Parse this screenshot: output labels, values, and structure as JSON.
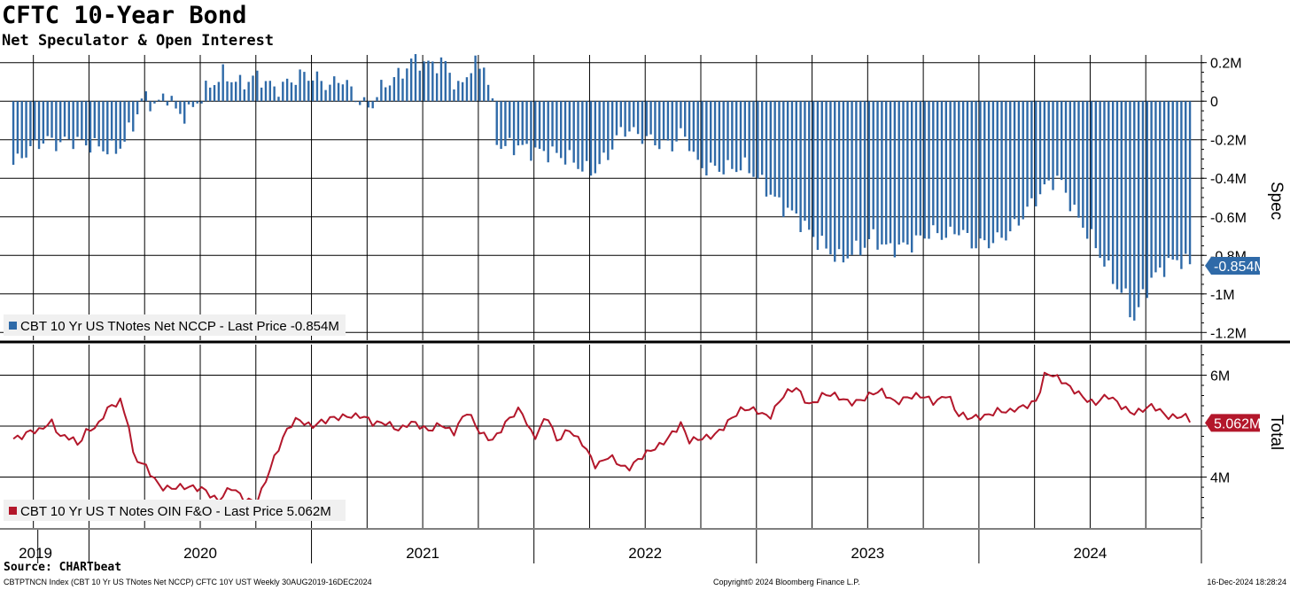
{
  "header": {
    "title": "CFTC 10-Year Bond",
    "subtitle": "Net Speculator & Open Interest"
  },
  "footer": {
    "source": "Source: CHARTbeat",
    "ticker_desc": "CBTPTNCN Index (CBT 10 Yr US TNotes Net NCCP) CFTC 10Y UST  Weekly 30AUG2019-16DEC2024",
    "copyright": "Copyright© 2024 Bloomberg Finance L.P.",
    "timestamp": "16-Dec-2024 18:28:24"
  },
  "colors": {
    "spec": "#2f6aa8",
    "total": "#b3172b",
    "grid": "#000000",
    "legend_bg": "#f0f0f0"
  },
  "chart_data": [
    {
      "type": "bar",
      "panel": "top",
      "series_name": "CBT 10 Yr US TNotes Net NCCP",
      "legend_label": "CBT 10 Yr US TNotes Net NCCP - Last Price -0.854M",
      "axis_title": "Spec",
      "y_unit": "millions",
      "ylim": [
        -1.24,
        0.24
      ],
      "y_ticks": [
        0.2,
        0,
        -0.2,
        -0.4,
        -0.6,
        -0.8,
        -1.0,
        -1.2
      ],
      "y_tick_labels": [
        "0.2M",
        "0",
        "-0.2M",
        "-0.4M",
        "-0.6M",
        "-0.8M",
        "-1M",
        "-1.2M"
      ],
      "last_value": -0.854,
      "last_label": "-0.854M",
      "anchors": [
        [
          2019.66,
          -0.33
        ],
        [
          2019.72,
          -0.26
        ],
        [
          2019.8,
          -0.2
        ],
        [
          2019.86,
          -0.22
        ],
        [
          2019.92,
          -0.2
        ],
        [
          2019.98,
          -0.22
        ],
        [
          2020.05,
          -0.24
        ],
        [
          2020.12,
          -0.26
        ],
        [
          2020.16,
          -0.2
        ],
        [
          2020.2,
          -0.12
        ],
        [
          2020.24,
          0.02
        ],
        [
          2020.3,
          -0.02
        ],
        [
          2020.36,
          0.04
        ],
        [
          2020.4,
          -0.08
        ],
        [
          2020.46,
          -0.05
        ],
        [
          2020.52,
          0.05
        ],
        [
          2020.6,
          0.14
        ],
        [
          2020.68,
          0.09
        ],
        [
          2020.76,
          0.13
        ],
        [
          2020.84,
          0.06
        ],
        [
          2020.9,
          0.1
        ],
        [
          2020.96,
          0.14
        ],
        [
          2021.02,
          0.12
        ],
        [
          2021.08,
          0.08
        ],
        [
          2021.14,
          0.12
        ],
        [
          2021.2,
          0.02
        ],
        [
          2021.26,
          -0.04
        ],
        [
          2021.32,
          0.08
        ],
        [
          2021.4,
          0.14
        ],
        [
          2021.46,
          0.22
        ],
        [
          2021.52,
          0.19
        ],
        [
          2021.6,
          0.2
        ],
        [
          2021.66,
          0.06
        ],
        [
          2021.72,
          0.18
        ],
        [
          2021.78,
          0.19
        ],
        [
          2021.81,
          0.0
        ],
        [
          2021.82,
          -0.1
        ],
        [
          2021.84,
          -0.24
        ],
        [
          2021.92,
          -0.23
        ],
        [
          2022.0,
          -0.26
        ],
        [
          2022.08,
          -0.27
        ],
        [
          2022.16,
          -0.3
        ],
        [
          2022.22,
          -0.35
        ],
        [
          2022.26,
          -0.37
        ],
        [
          2022.32,
          -0.3
        ],
        [
          2022.4,
          -0.14
        ],
        [
          2022.46,
          -0.17
        ],
        [
          2022.56,
          -0.22
        ],
        [
          2022.62,
          -0.23
        ],
        [
          2022.66,
          -0.17
        ],
        [
          2022.7,
          -0.22
        ],
        [
          2022.74,
          -0.34
        ],
        [
          2022.8,
          -0.35
        ],
        [
          2022.88,
          -0.35
        ],
        [
          2022.96,
          -0.34
        ],
        [
          2023.02,
          -0.42
        ],
        [
          2023.1,
          -0.53
        ],
        [
          2023.18,
          -0.6
        ],
        [
          2023.26,
          -0.71
        ],
        [
          2023.34,
          -0.79
        ],
        [
          2023.38,
          -0.83
        ],
        [
          2023.42,
          -0.79
        ],
        [
          2023.48,
          -0.76
        ],
        [
          2023.52,
          -0.7
        ],
        [
          2023.58,
          -0.76
        ],
        [
          2023.64,
          -0.76
        ],
        [
          2023.7,
          -0.74
        ],
        [
          2023.78,
          -0.68
        ],
        [
          2023.86,
          -0.7
        ],
        [
          2023.92,
          -0.66
        ],
        [
          2023.96,
          -0.74
        ],
        [
          2024.02,
          -0.74
        ],
        [
          2024.08,
          -0.72
        ],
        [
          2024.14,
          -0.68
        ],
        [
          2024.2,
          -0.59
        ],
        [
          2024.26,
          -0.5
        ],
        [
          2024.32,
          -0.42
        ],
        [
          2024.36,
          -0.4
        ],
        [
          2024.38,
          -0.45
        ],
        [
          2024.44,
          -0.6
        ],
        [
          2024.5,
          -0.7
        ],
        [
          2024.56,
          -0.83
        ],
        [
          2024.62,
          -0.96
        ],
        [
          2024.66,
          -1.02
        ],
        [
          2024.7,
          -1.14
        ],
        [
          2024.74,
          -1.0
        ],
        [
          2024.78,
          -0.92
        ],
        [
          2024.84,
          -0.85
        ],
        [
          2024.9,
          -0.82
        ],
        [
          2024.96,
          -0.854
        ]
      ]
    },
    {
      "type": "line",
      "panel": "bottom",
      "series_name": "CBT 10 Yr US T Notes OIN F&O",
      "legend_label": "CBT 10 Yr US T Notes OIN F&O - Last Price 5.062M",
      "axis_title": "Total",
      "y_unit": "millions",
      "ylim": [
        3.0,
        6.6
      ],
      "y_ticks": [
        6,
        5,
        4
      ],
      "y_tick_labels": [
        "6M",
        "",
        "4M"
      ],
      "last_value": 5.062,
      "last_label": "5.062M",
      "anchors": [
        [
          2019.66,
          4.75
        ],
        [
          2019.7,
          4.85
        ],
        [
          2019.74,
          4.95
        ],
        [
          2019.78,
          4.88
        ],
        [
          2019.83,
          5.05
        ],
        [
          2019.87,
          4.8
        ],
        [
          2019.92,
          4.85
        ],
        [
          2019.95,
          4.65
        ],
        [
          2019.98,
          4.85
        ],
        [
          2020.04,
          4.95
        ],
        [
          2020.08,
          5.35
        ],
        [
          2020.14,
          5.55
        ],
        [
          2020.18,
          5.0
        ],
        [
          2020.2,
          4.35
        ],
        [
          2020.26,
          4.15
        ],
        [
          2020.32,
          3.85
        ],
        [
          2020.38,
          3.8
        ],
        [
          2020.44,
          3.75
        ],
        [
          2020.52,
          3.8
        ],
        [
          2020.58,
          3.55
        ],
        [
          2020.64,
          3.75
        ],
        [
          2020.7,
          3.55
        ],
        [
          2020.76,
          3.6
        ],
        [
          2020.8,
          4.0
        ],
        [
          2020.86,
          4.6
        ],
        [
          2020.9,
          5.0
        ],
        [
          2020.94,
          5.2
        ],
        [
          2021.0,
          5.0
        ],
        [
          2021.06,
          5.05
        ],
        [
          2021.1,
          5.15
        ],
        [
          2021.16,
          5.25
        ],
        [
          2021.22,
          5.2
        ],
        [
          2021.28,
          5.0
        ],
        [
          2021.34,
          5.1
        ],
        [
          2021.4,
          4.95
        ],
        [
          2021.44,
          5.05
        ],
        [
          2021.52,
          4.9
        ],
        [
          2021.58,
          5.1
        ],
        [
          2021.64,
          4.85
        ],
        [
          2021.7,
          5.25
        ],
        [
          2021.76,
          4.9
        ],
        [
          2021.82,
          4.75
        ],
        [
          2021.88,
          5.05
        ],
        [
          2021.94,
          5.35
        ],
        [
          2022.0,
          4.8
        ],
        [
          2022.06,
          5.2
        ],
        [
          2022.1,
          4.65
        ],
        [
          2022.16,
          4.95
        ],
        [
          2022.22,
          4.7
        ],
        [
          2022.28,
          4.15
        ],
        [
          2022.34,
          4.4
        ],
        [
          2022.42,
          4.2
        ],
        [
          2022.5,
          4.4
        ],
        [
          2022.56,
          4.6
        ],
        [
          2022.62,
          4.9
        ],
        [
          2022.66,
          5.05
        ],
        [
          2022.7,
          4.65
        ],
        [
          2022.76,
          4.75
        ],
        [
          2022.82,
          4.9
        ],
        [
          2022.88,
          5.1
        ],
        [
          2022.94,
          5.3
        ],
        [
          2023.0,
          5.35
        ],
        [
          2023.06,
          5.2
        ],
        [
          2023.12,
          5.55
        ],
        [
          2023.18,
          5.75
        ],
        [
          2023.24,
          5.45
        ],
        [
          2023.3,
          5.6
        ],
        [
          2023.36,
          5.55
        ],
        [
          2023.42,
          5.5
        ],
        [
          2023.48,
          5.55
        ],
        [
          2023.56,
          5.65
        ],
        [
          2023.62,
          5.5
        ],
        [
          2023.68,
          5.6
        ],
        [
          2023.74,
          5.55
        ],
        [
          2023.8,
          5.45
        ],
        [
          2023.86,
          5.7
        ],
        [
          2023.9,
          5.25
        ],
        [
          2023.96,
          5.1
        ],
        [
          2024.02,
          5.2
        ],
        [
          2024.08,
          5.35
        ],
        [
          2024.14,
          5.25
        ],
        [
          2024.2,
          5.35
        ],
        [
          2024.26,
          5.55
        ],
        [
          2024.3,
          6.1
        ],
        [
          2024.34,
          5.95
        ],
        [
          2024.4,
          5.75
        ],
        [
          2024.46,
          5.65
        ],
        [
          2024.52,
          5.45
        ],
        [
          2024.58,
          5.55
        ],
        [
          2024.64,
          5.4
        ],
        [
          2024.7,
          5.3
        ],
        [
          2024.78,
          5.35
        ],
        [
          2024.84,
          5.2
        ],
        [
          2024.92,
          5.25
        ],
        [
          2024.96,
          5.062
        ]
      ]
    }
  ],
  "x_axis": {
    "range": [
      2019.6,
      2025.0
    ],
    "year_labels": [
      {
        "label": "2019",
        "center": 2019.8
      },
      {
        "label": "2020",
        "center": 2020.5
      },
      {
        "label": "2021",
        "center": 2021.5
      },
      {
        "label": "2022",
        "center": 2022.5
      },
      {
        "label": "2023",
        "center": 2023.5
      },
      {
        "label": "2024",
        "center": 2024.5
      }
    ],
    "year_boundaries": [
      2020.0,
      2021.0,
      2022.0,
      2023.0,
      2024.0,
      2025.0
    ],
    "quarter_gridlines": [
      2019.75,
      2020.0,
      2020.25,
      2020.5,
      2020.75,
      2021.0,
      2021.25,
      2021.5,
      2021.75,
      2022.0,
      2022.25,
      2022.5,
      2022.75,
      2023.0,
      2023.25,
      2023.5,
      2023.75,
      2024.0,
      2024.25,
      2024.5,
      2024.75
    ]
  }
}
